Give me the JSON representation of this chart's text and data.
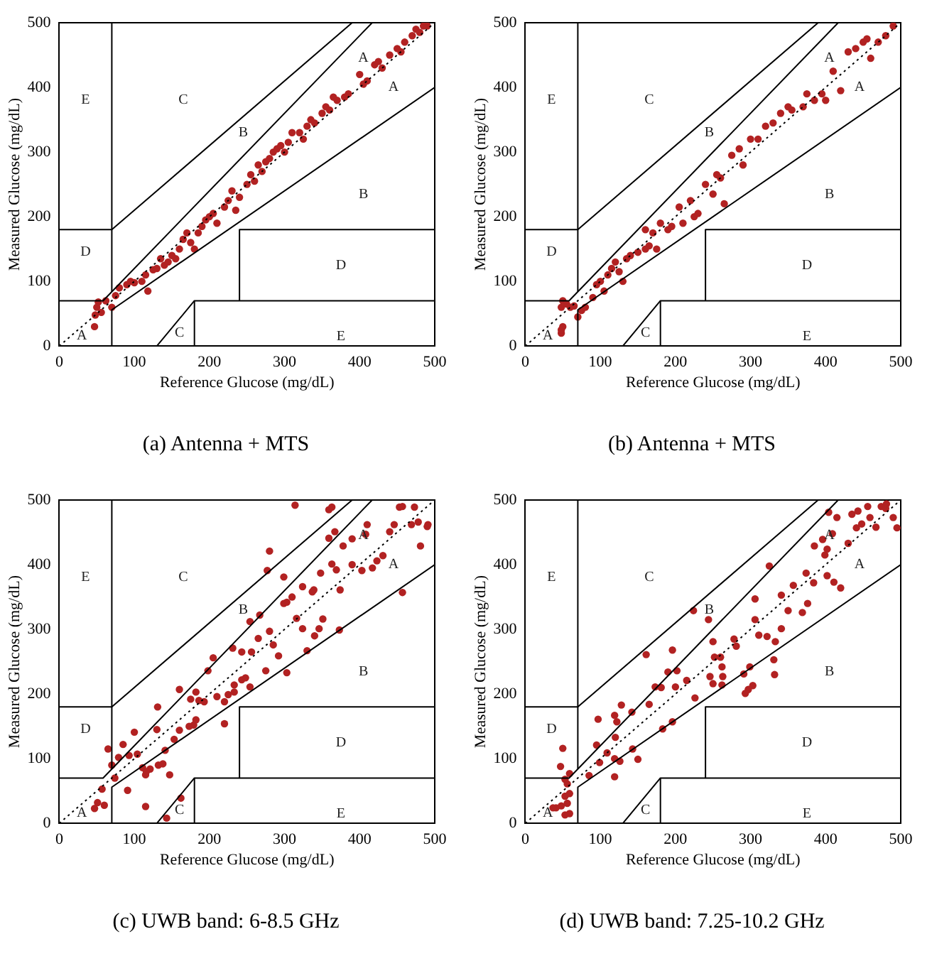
{
  "chart_data": [
    {
      "type": "scatter",
      "title": "(a) Antenna + MTS",
      "xlabel": "Reference Glucose (mg/dL)",
      "ylabel": "Measured Glucose (mg/dL)",
      "xlim": [
        0,
        500
      ],
      "ylim": [
        0,
        500
      ],
      "xticks": [
        0,
        100,
        200,
        300,
        400,
        500
      ],
      "yticks": [
        0,
        100,
        200,
        300,
        400,
        500
      ],
      "grid": false,
      "legend": false,
      "marker": "circle",
      "annotations": [
        "E",
        "C",
        "B",
        "A",
        "A",
        "B",
        "D",
        "D",
        "A",
        "C",
        "E"
      ],
      "series": [
        {
          "type": "line",
          "marker": "none",
          "color": "#000000",
          "x": [
            0,
            58.33,
            416.67
          ],
          "values": [
            70,
            70,
            500
          ]
        },
        {
          "type": "line",
          "marker": "none",
          "color": "#000000",
          "x": [
            70,
            70,
            500
          ],
          "values": [
            0,
            56,
            400
          ]
        },
        {
          "type": "line",
          "marker": "none",
          "color": "#000000",
          "x": [
            70,
            70
          ],
          "values": [
            84,
            500
          ]
        },
        {
          "type": "line",
          "marker": "none",
          "color": "#000000",
          "x": [
            0,
            70,
            390
          ],
          "values": [
            180,
            180,
            500
          ]
        },
        {
          "type": "line",
          "marker": "none",
          "color": "#000000",
          "x": [
            130,
            180,
            500
          ],
          "values": [
            0,
            70,
            70
          ]
        },
        {
          "type": "line",
          "marker": "none",
          "color": "#000000",
          "x": [
            180,
            180
          ],
          "values": [
            0,
            70
          ]
        },
        {
          "type": "line",
          "marker": "none",
          "color": "#000000",
          "x": [
            240,
            240,
            500
          ],
          "values": [
            70,
            180,
            180
          ]
        },
        {
          "type": "line",
          "marker": "none",
          "color": "#000000",
          "line_style": "dotted",
          "x": [
            0,
            500
          ],
          "values": [
            0,
            500
          ]
        },
        {
          "color": "#b22222",
          "x": [
            47,
            48,
            50,
            52,
            56,
            62,
            70,
            75,
            80,
            90,
            95,
            100,
            110,
            115,
            118,
            125,
            130,
            135,
            140,
            145,
            150,
            155,
            160,
            165,
            170,
            175,
            180,
            185,
            190,
            195,
            200,
            205,
            210,
            220,
            225,
            230,
            235,
            240,
            250,
            255,
            260,
            265,
            270,
            275,
            280,
            285,
            290,
            295,
            300,
            305,
            310,
            320,
            325,
            330,
            335,
            340,
            350,
            355,
            360,
            365,
            370,
            380,
            385,
            400,
            405,
            410,
            420,
            425,
            430,
            440,
            450,
            455,
            460,
            470,
            475,
            480,
            485,
            490
          ],
          "values": [
            30,
            48,
            60,
            68,
            52,
            70,
            60,
            78,
            90,
            95,
            100,
            98,
            100,
            110,
            85,
            118,
            120,
            135,
            125,
            130,
            140,
            135,
            150,
            165,
            175,
            160,
            150,
            175,
            185,
            195,
            200,
            205,
            190,
            215,
            225,
            240,
            210,
            230,
            250,
            265,
            255,
            280,
            270,
            285,
            290,
            300,
            305,
            310,
            300,
            315,
            330,
            330,
            320,
            340,
            350,
            345,
            360,
            370,
            365,
            385,
            380,
            385,
            390,
            420,
            405,
            410,
            435,
            440,
            430,
            450,
            460,
            455,
            470,
            480,
            490,
            485,
            495,
            495
          ]
        }
      ]
    },
    {
      "type": "scatter",
      "title": "(b) Antenna + MTS",
      "xlabel": "Reference Glucose (mg/dL)",
      "ylabel": "Measured Glucose (mg/dL)",
      "xlim": [
        0,
        500
      ],
      "ylim": [
        0,
        500
      ],
      "xticks": [
        0,
        100,
        200,
        300,
        400,
        500
      ],
      "yticks": [
        0,
        100,
        200,
        300,
        400,
        500
      ],
      "grid": false,
      "legend": false,
      "marker": "circle",
      "annotations": [
        "E",
        "C",
        "B",
        "A",
        "A",
        "B",
        "D",
        "D",
        "A",
        "C",
        "E"
      ],
      "series": [
        {
          "type": "line",
          "marker": "none",
          "color": "#000000",
          "x": [
            0,
            58.33,
            416.67
          ],
          "values": [
            70,
            70,
            500
          ]
        },
        {
          "type": "line",
          "marker": "none",
          "color": "#000000",
          "x": [
            70,
            70,
            500
          ],
          "values": [
            0,
            56,
            400
          ]
        },
        {
          "type": "line",
          "marker": "none",
          "color": "#000000",
          "x": [
            70,
            70
          ],
          "values": [
            84,
            500
          ]
        },
        {
          "type": "line",
          "marker": "none",
          "color": "#000000",
          "x": [
            0,
            70,
            390
          ],
          "values": [
            180,
            180,
            500
          ]
        },
        {
          "type": "line",
          "marker": "none",
          "color": "#000000",
          "x": [
            130,
            180,
            500
          ],
          "values": [
            0,
            70,
            70
          ]
        },
        {
          "type": "line",
          "marker": "none",
          "color": "#000000",
          "x": [
            180,
            180
          ],
          "values": [
            0,
            70
          ]
        },
        {
          "type": "line",
          "marker": "none",
          "color": "#000000",
          "x": [
            240,
            240,
            500
          ],
          "values": [
            70,
            180,
            180
          ]
        },
        {
          "type": "line",
          "marker": "none",
          "color": "#000000",
          "line_style": "dotted",
          "x": [
            0,
            500
          ],
          "values": [
            0,
            500
          ]
        },
        {
          "color": "#b22222",
          "x": [
            48,
            48,
            50,
            48,
            50,
            55,
            60,
            65,
            70,
            75,
            80,
            90,
            95,
            100,
            105,
            110,
            115,
            120,
            125,
            130,
            135,
            140,
            150,
            160,
            165,
            175,
            160,
            170,
            180,
            190,
            195,
            210,
            205,
            220,
            225,
            230,
            240,
            250,
            255,
            260,
            265,
            275,
            285,
            290,
            300,
            310,
            320,
            330,
            340,
            350,
            355,
            370,
            375,
            385,
            395,
            400,
            410,
            420,
            430,
            440,
            450,
            455,
            460,
            470,
            480,
            490
          ],
          "values": [
            20,
            25,
            30,
            60,
            70,
            65,
            60,
            62,
            45,
            55,
            60,
            75,
            95,
            100,
            85,
            110,
            120,
            130,
            115,
            100,
            135,
            140,
            145,
            150,
            155,
            150,
            180,
            175,
            190,
            180,
            185,
            190,
            215,
            225,
            200,
            205,
            250,
            235,
            265,
            260,
            220,
            295,
            305,
            280,
            320,
            320,
            340,
            345,
            360,
            370,
            365,
            370,
            390,
            380,
            390,
            380,
            425,
            395,
            455,
            460,
            470,
            475,
            445,
            470,
            480,
            495
          ]
        }
      ]
    },
    {
      "type": "scatter",
      "title": "(c) UWB band: 6-8.5 GHz",
      "xlabel": "Reference Glucose (mg/dL)",
      "ylabel": "Measured Glucose (mg/dL)",
      "xlim": [
        0,
        500
      ],
      "ylim": [
        0,
        500
      ],
      "xticks": [
        0,
        100,
        200,
        300,
        400,
        500
      ],
      "yticks": [
        0,
        100,
        200,
        300,
        400,
        500
      ],
      "grid": false,
      "legend": false,
      "marker": "circle",
      "annotations": [
        "E",
        "C",
        "B",
        "A",
        "A",
        "B",
        "D",
        "D",
        "A",
        "C",
        "E"
      ],
      "series": [
        {
          "type": "line",
          "marker": "none",
          "color": "#000000",
          "x": [
            0,
            58.33,
            416.67
          ],
          "values": [
            70,
            70,
            500
          ]
        },
        {
          "type": "line",
          "marker": "none",
          "color": "#000000",
          "x": [
            70,
            70,
            500
          ],
          "values": [
            0,
            56,
            400
          ]
        },
        {
          "type": "line",
          "marker": "none",
          "color": "#000000",
          "x": [
            70,
            70
          ],
          "values": [
            84,
            500
          ]
        },
        {
          "type": "line",
          "marker": "none",
          "color": "#000000",
          "x": [
            0,
            70,
            390
          ],
          "values": [
            180,
            180,
            500
          ]
        },
        {
          "type": "line",
          "marker": "none",
          "color": "#000000",
          "x": [
            130,
            180,
            500
          ],
          "values": [
            0,
            70,
            70
          ]
        },
        {
          "type": "line",
          "marker": "none",
          "color": "#000000",
          "x": [
            180,
            180
          ],
          "values": [
            0,
            70
          ]
        },
        {
          "type": "line",
          "marker": "none",
          "color": "#000000",
          "x": [
            240,
            240,
            500
          ],
          "values": [
            70,
            180,
            180
          ]
        },
        {
          "type": "line",
          "marker": "none",
          "color": "#000000",
          "line_style": "dotted",
          "x": [
            0,
            500
          ],
          "values": [
            0,
            500
          ]
        },
        {
          "color": "#b22222",
          "x": [
            314,
            359,
            363,
            453,
            457,
            473,
            280,
            277,
            299,
            299,
            303,
            310,
            359,
            367,
            390,
            408,
            410,
            440,
            446,
            469,
            478,
            491,
            490,
            481,
            457,
            431,
            423,
            417,
            403,
            390,
            378,
            369,
            348,
            374,
            363,
            339,
            337,
            324,
            316,
            324,
            330,
            340,
            351,
            346,
            373,
            254,
            267,
            280,
            265,
            256,
            243,
            231,
            285,
            292,
            303,
            275,
            243,
            248,
            233,
            254,
            220,
            225,
            233,
            205,
            198,
            182,
            186,
            193,
            210,
            175,
            173,
            220,
            160,
            131,
            160,
            179,
            182,
            153,
            141,
            132,
            147,
            138,
            130,
            100,
            85,
            65,
            79,
            93,
            104,
            111,
            115,
            121,
            116,
            91,
            74,
            70,
            57,
            47,
            51,
            60,
            115,
            162,
            143
          ],
          "values": [
            492,
            485,
            489,
            489,
            490,
            489,
            421,
            391,
            381,
            340,
            342,
            350,
            441,
            451,
            440,
            447,
            462,
            451,
            462,
            462,
            466,
            462,
            459,
            429,
            357,
            414,
            406,
            395,
            391,
            400,
            429,
            392,
            387,
            361,
            401,
            361,
            358,
            366,
            317,
            301,
            267,
            290,
            316,
            301,
            299,
            312,
            322,
            297,
            286,
            265,
            265,
            271,
            276,
            259,
            233,
            236,
            222,
            225,
            214,
            211,
            188,
            199,
            203,
            256,
            236,
            203,
            190,
            188,
            196,
            192,
            150,
            154,
            207,
            180,
            144,
            152,
            160,
            130,
            113,
            90,
            75,
            92,
            145,
            141,
            122,
            115,
            102,
            105,
            107,
            86,
            75,
            84,
            80,
            51,
            70,
            90,
            53,
            23,
            32,
            28,
            26,
            39,
            8
          ]
        }
      ]
    },
    {
      "type": "scatter",
      "title": "(d) UWB band: 7.25-10.2 GHz",
      "xlabel": "Reference Glucose (mg/dL)",
      "ylabel": "Measured Glucose (mg/dL)",
      "xlim": [
        0,
        500
      ],
      "ylim": [
        0,
        500
      ],
      "xticks": [
        0,
        100,
        200,
        300,
        400,
        500
      ],
      "yticks": [
        0,
        100,
        200,
        300,
        400,
        500
      ],
      "grid": false,
      "legend": false,
      "marker": "circle",
      "annotations": [
        "E",
        "C",
        "B",
        "A",
        "A",
        "B",
        "D",
        "D",
        "A",
        "C",
        "E"
      ],
      "series": [
        {
          "type": "line",
          "marker": "none",
          "color": "#000000",
          "x": [
            0,
            58.33,
            416.67
          ],
          "values": [
            70,
            70,
            500
          ]
        },
        {
          "type": "line",
          "marker": "none",
          "color": "#000000",
          "x": [
            70,
            70,
            500
          ],
          "values": [
            0,
            56,
            400
          ]
        },
        {
          "type": "line",
          "marker": "none",
          "color": "#000000",
          "x": [
            70,
            70
          ],
          "values": [
            84,
            500
          ]
        },
        {
          "type": "line",
          "marker": "none",
          "color": "#000000",
          "x": [
            0,
            70,
            390
          ],
          "values": [
            180,
            180,
            500
          ]
        },
        {
          "type": "line",
          "marker": "none",
          "color": "#000000",
          "x": [
            130,
            180,
            500
          ],
          "values": [
            0,
            70,
            70
          ]
        },
        {
          "type": "line",
          "marker": "none",
          "color": "#000000",
          "x": [
            180,
            180
          ],
          "values": [
            0,
            70
          ]
        },
        {
          "type": "line",
          "marker": "none",
          "color": "#000000",
          "x": [
            240,
            240,
            500
          ],
          "values": [
            70,
            180,
            180
          ]
        },
        {
          "type": "line",
          "marker": "none",
          "color": "#000000",
          "line_style": "dotted",
          "x": [
            0,
            500
          ],
          "values": [
            0,
            500
          ]
        },
        {
          "color": "#b22222",
          "x": [
            404,
            415,
            435,
            443,
            456,
            474,
            481,
            480,
            490,
            495,
            467,
            459,
            448,
            441,
            430,
            409,
            396,
            402,
            399,
            385,
            374,
            384,
            402,
            411,
            420,
            357,
            341,
            350,
            369,
            376,
            325,
            306,
            306,
            311,
            322,
            333,
            341,
            331,
            332,
            299,
            291,
            303,
            297,
            293,
            224,
            244,
            250,
            252,
            260,
            262,
            246,
            263,
            250,
            278,
            281,
            262,
            196,
            202,
            190,
            215,
            200,
            181,
            173,
            226,
            183,
            196,
            161,
            165,
            128,
            142,
            119,
            122,
            120,
            97,
            95,
            143,
            150,
            109,
            119,
            126,
            99,
            85,
            119,
            50,
            47,
            59,
            53,
            56,
            59,
            53,
            56,
            48,
            41,
            53,
            59,
            37
          ],
          "values": [
            481,
            473,
            478,
            483,
            490,
            490,
            494,
            487,
            473,
            457,
            458,
            473,
            463,
            457,
            433,
            448,
            439,
            424,
            415,
            429,
            387,
            372,
            383,
            373,
            364,
            368,
            353,
            329,
            326,
            340,
            398,
            347,
            315,
            291,
            289,
            281,
            301,
            253,
            230,
            242,
            231,
            213,
            207,
            201,
            329,
            315,
            281,
            257,
            257,
            242,
            227,
            227,
            216,
            285,
            274,
            214,
            268,
            236,
            234,
            221,
            211,
            210,
            211,
            194,
            146,
            157,
            261,
            184,
            183,
            172,
            167,
            157,
            133,
            161,
            121,
            115,
            99,
            109,
            100,
            96,
            94,
            74,
            72,
            116,
            88,
            77,
            68,
            61,
            46,
            42,
            31,
            27,
            24,
            13,
            15,
            24
          ]
        }
      ]
    }
  ]
}
